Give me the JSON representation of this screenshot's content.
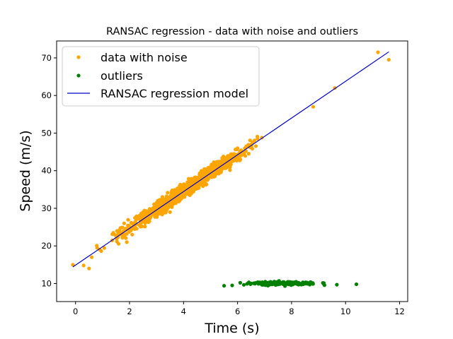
{
  "chart_data": {
    "type": "scatter",
    "title": "RANSAC regression - data with noise and outliers",
    "xlabel": "Time (s)",
    "ylabel": "Speed (m/s)",
    "xlim": [
      -0.7,
      12.3
    ],
    "ylim": [
      5.2,
      74.5
    ],
    "xticks": [
      "0",
      "2",
      "4",
      "6",
      "8",
      "10",
      "12"
    ],
    "yticks": [
      "10",
      "20",
      "30",
      "40",
      "50",
      "60",
      "70"
    ],
    "grid": false,
    "legend_position": "top-left",
    "series": [
      {
        "name": "data with noise",
        "kind": "points",
        "color": "#ffa500",
        "trend": {
          "slope": 4.9,
          "intercept": 15.0,
          "x_min": -0.1,
          "x_max": 11.6,
          "noise_sd": 1.3
        },
        "points": [
          [
            -0.1,
            15.0
          ],
          [
            0.3,
            14.8
          ],
          [
            0.5,
            14.0
          ],
          [
            0.6,
            17.0
          ],
          [
            0.8,
            19.5
          ],
          [
            0.9,
            19.0
          ],
          [
            1.4,
            23.5
          ],
          [
            1.8,
            26.0
          ],
          [
            1.9,
            21.0
          ],
          [
            2.1,
            23.0
          ],
          [
            3.5,
            29.0
          ],
          [
            6.0,
            46.0
          ],
          [
            8.8,
            57.0
          ],
          [
            9.6,
            62.0
          ],
          [
            11.2,
            71.5
          ],
          [
            11.6,
            69.5
          ]
        ]
      },
      {
        "name": "outliers",
        "kind": "points",
        "color": "#008000",
        "cluster": {
          "x_min": 5.5,
          "x_max": 10.4,
          "y_mean": 10.0,
          "y_spread": 0.8
        },
        "points": [
          [
            5.5,
            9.4
          ],
          [
            5.8,
            9.5
          ],
          [
            6.1,
            10.2
          ],
          [
            10.4,
            9.8
          ]
        ]
      },
      {
        "name": "RANSAC regression model",
        "kind": "line",
        "color": "#0000cc",
        "x": [
          -0.1,
          11.6
        ],
        "y": [
          14.4,
          71.6
        ]
      }
    ]
  }
}
